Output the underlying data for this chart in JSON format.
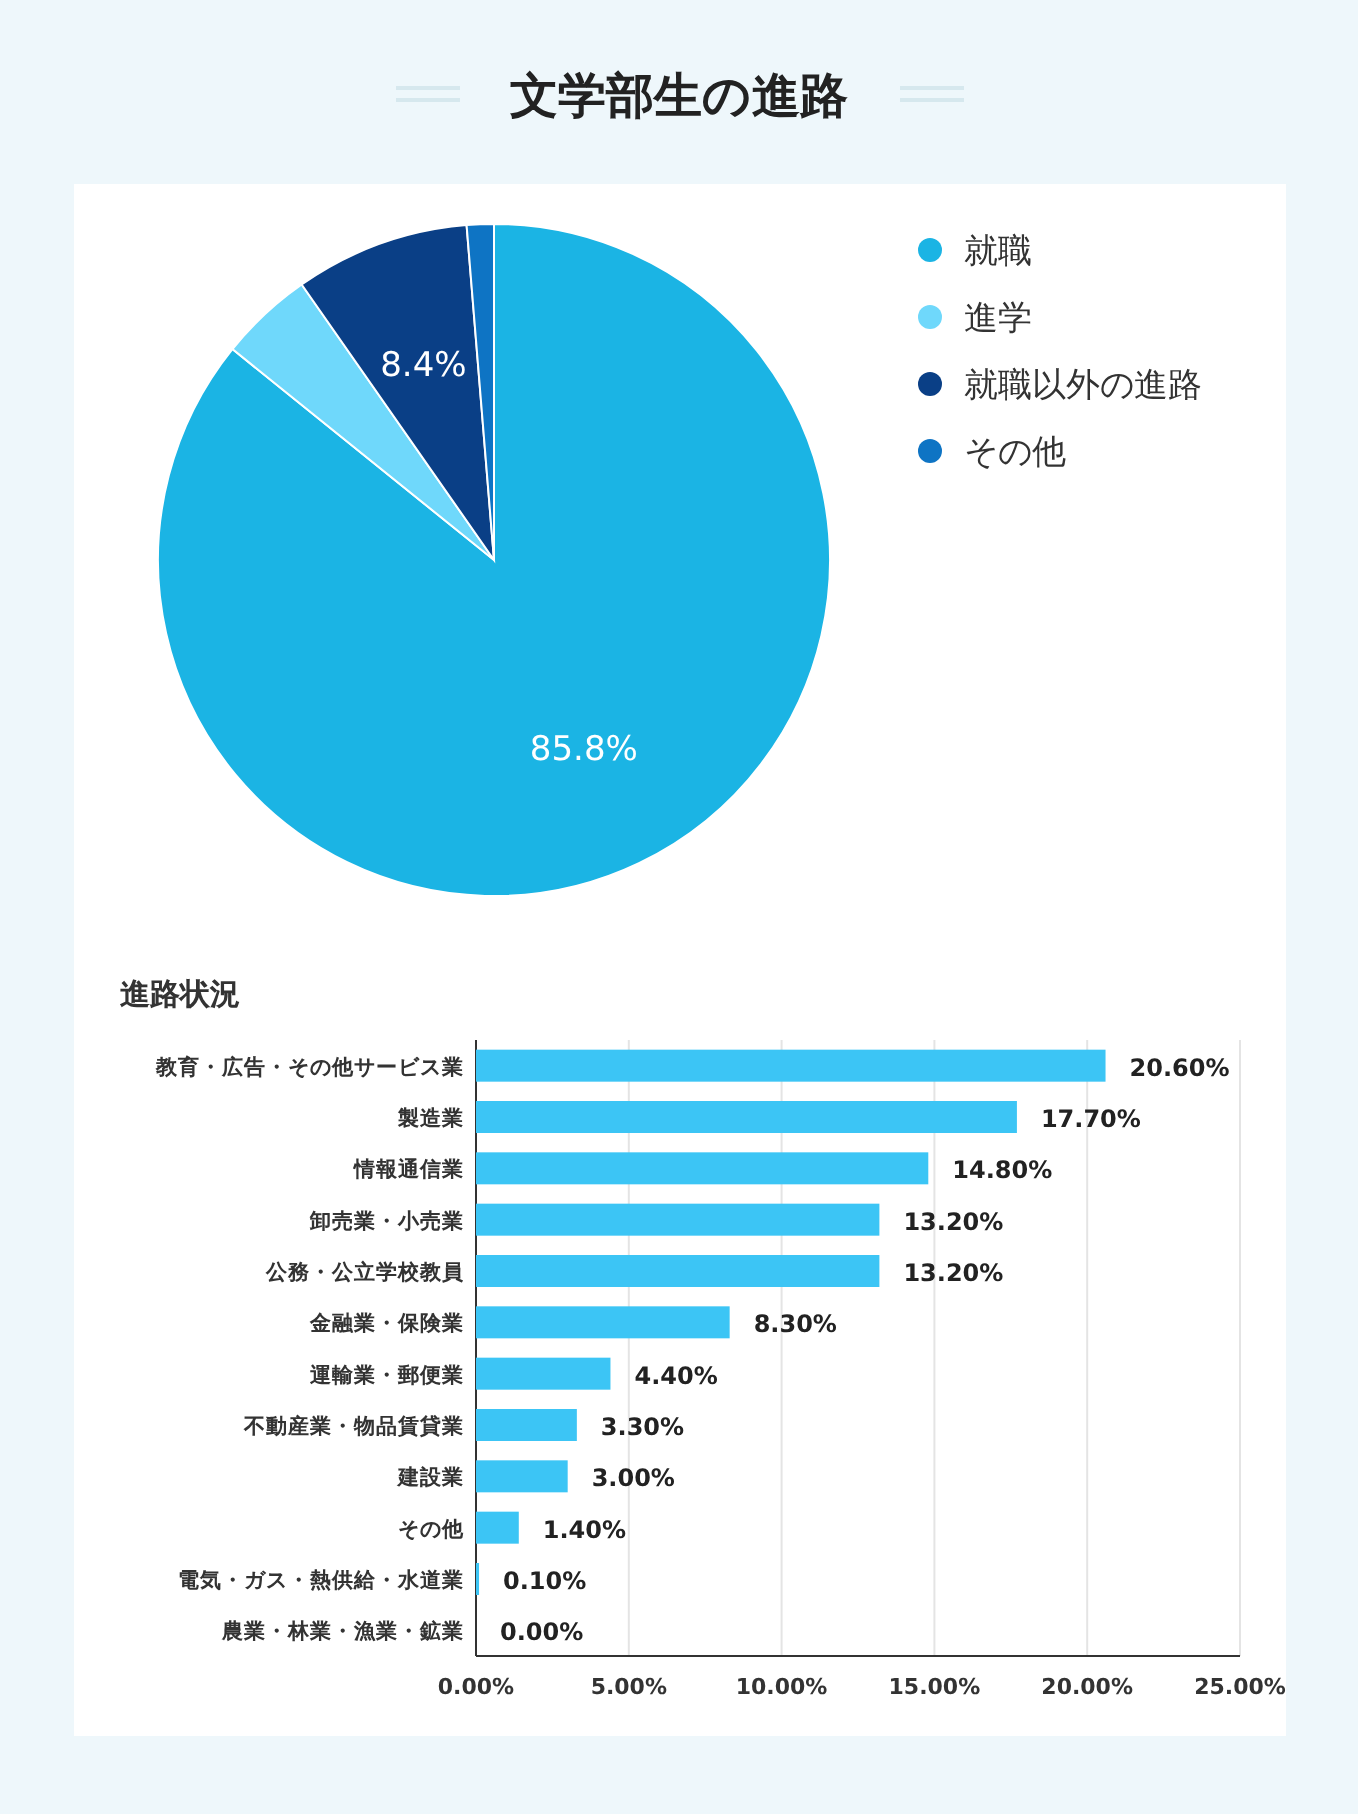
{
  "chart_data": [
    {
      "type": "pie",
      "title": "文学部生の進路",
      "categories": [
        "就職",
        "進学",
        "就職以外の進路",
        "その他"
      ],
      "values": [
        85.8,
        4.5,
        8.4,
        1.3
      ],
      "colors": [
        "#1bb4e4",
        "#6fd8fb",
        "#0a3f86",
        "#0e74c4"
      ],
      "value_labels": [
        "85.8%",
        null,
        "8.4%",
        null
      ],
      "legend": "right"
    },
    {
      "type": "bar",
      "title": "進路状況",
      "orientation": "horizontal",
      "categories": [
        "教育・広告・その他サービス業",
        "製造業",
        "情報通信業",
        "卸売業・小売業",
        "公務・公立学校教員",
        "金融業・保険業",
        "運輸業・郵便業",
        "不動産業・物品賃貸業",
        "建設業",
        "その他",
        "電気・ガス・熱供給・水道業",
        "農業・林業・漁業・鉱業"
      ],
      "values": [
        20.6,
        17.7,
        14.8,
        13.2,
        13.2,
        8.3,
        4.4,
        3.3,
        3.0,
        1.4,
        0.1,
        0.0
      ],
      "color": "#3cc5f5",
      "value_labels": [
        "20.60%",
        "17.70%",
        "14.80%",
        "13.20%",
        "13.20%",
        "8.30%",
        "4.40%",
        "3.30%",
        "3.00%",
        "1.40%",
        "0.10%",
        "0.00%"
      ],
      "xlim": [
        0,
        25
      ],
      "xticks": [
        {
          "value": 0,
          "label": "0.00%"
        },
        {
          "value": 5,
          "label": "5.00%"
        },
        {
          "value": 10,
          "label": "10.00%"
        },
        {
          "value": 15,
          "label": "15.00%"
        },
        {
          "value": 20,
          "label": "20.00%"
        },
        {
          "value": 25,
          "label": "25.00%"
        }
      ],
      "grid": "x"
    }
  ]
}
